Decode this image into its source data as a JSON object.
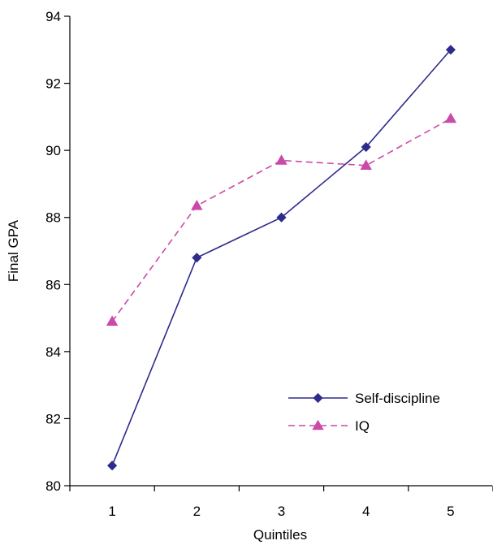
{
  "chart_data": {
    "type": "line",
    "title": "",
    "xlabel": "Quintiles",
    "ylabel": "Final GPA",
    "categories": [
      "1",
      "2",
      "3",
      "4",
      "5"
    ],
    "ylim": [
      80,
      94
    ],
    "yticks": [
      "80",
      "82",
      "84",
      "86",
      "88",
      "90",
      "92",
      "94"
    ],
    "grid": false,
    "legend_position": "bottom-right",
    "series": [
      {
        "name": "Self-discipline",
        "values": [
          80.6,
          86.8,
          88.0,
          90.1,
          93.0
        ],
        "color": "#2e2b8c",
        "marker": "diamond",
        "line_style": "solid"
      },
      {
        "name": "IQ",
        "values": [
          84.9,
          88.35,
          89.7,
          89.55,
          90.95
        ],
        "color": "#c94aa8",
        "marker": "triangle",
        "line_style": "dashed"
      }
    ]
  }
}
